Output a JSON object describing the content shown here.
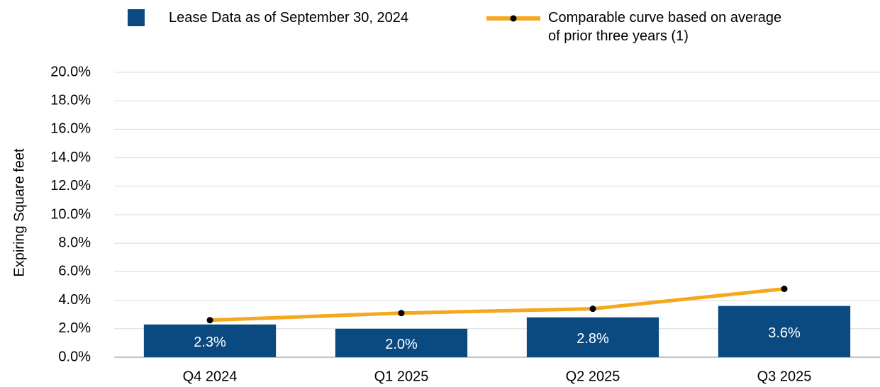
{
  "chart_data": {
    "type": "bar",
    "ylabel": "Expiring Square feet",
    "categories": [
      "Q4 2024",
      "Q1 2025",
      "Q2 2025",
      "Q3 2025"
    ],
    "series": [
      {
        "name": "Lease Data as of September 30, 2024",
        "type": "bar",
        "color": "#0b4a80",
        "values": [
          2.3,
          2.0,
          2.8,
          3.6
        ],
        "value_labels": [
          "2.3%",
          "2.0%",
          "2.8%",
          "3.6%"
        ]
      },
      {
        "name": "Comparable curve based on average of prior three years (1)",
        "type": "line",
        "color": "#f5a81c",
        "values": [
          2.6,
          3.1,
          3.4,
          4.8
        ]
      }
    ],
    "ylim": [
      0,
      20
    ],
    "yticks": [
      {
        "value": 0,
        "label": "0.0%"
      },
      {
        "value": 2,
        "label": "2.0%"
      },
      {
        "value": 4,
        "label": "4.0%"
      },
      {
        "value": 6,
        "label": "6.0%"
      },
      {
        "value": 8,
        "label": "8.0%"
      },
      {
        "value": 10,
        "label": "10.0%"
      },
      {
        "value": 12,
        "label": "12.0%"
      },
      {
        "value": 14,
        "label": "14.0%"
      },
      {
        "value": 16,
        "label": "16.0%"
      },
      {
        "value": 18,
        "label": "18.0%"
      },
      {
        "value": 20,
        "label": "20.0%"
      }
    ],
    "grid": true
  }
}
